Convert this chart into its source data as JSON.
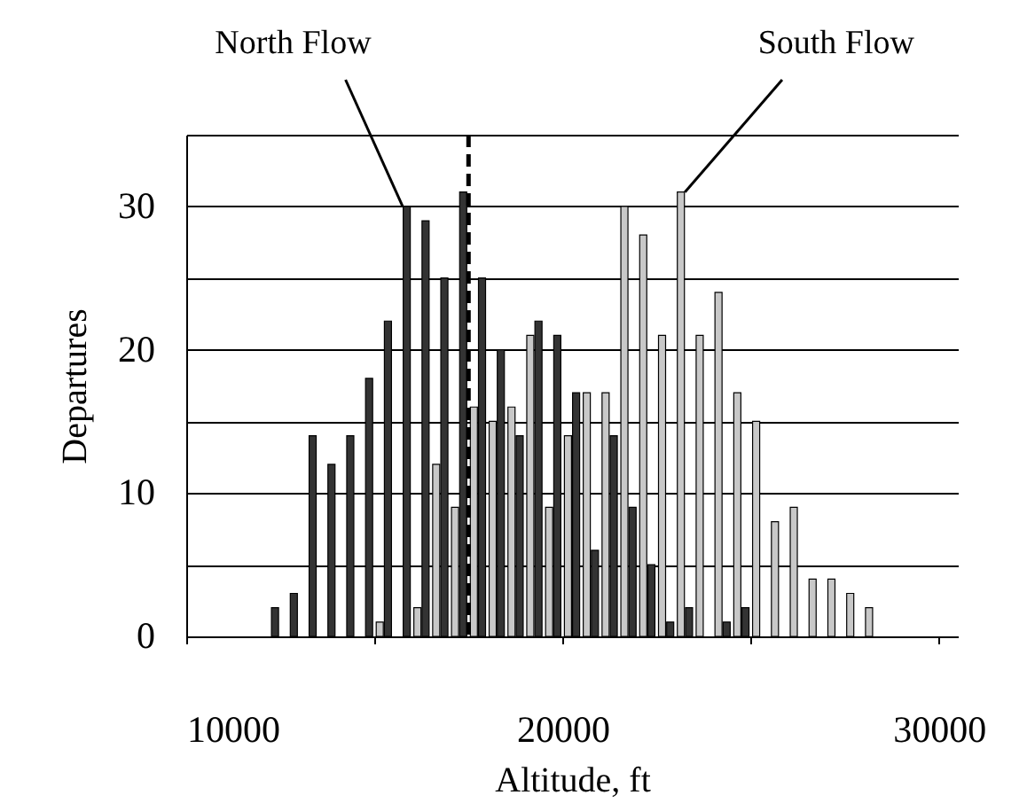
{
  "chart_data": {
    "type": "histogram",
    "xlabel": "Altitude, ft",
    "ylabel": "Departures",
    "bins": [
      12000,
      12500,
      13000,
      13500,
      14000,
      14500,
      15000,
      15500,
      16000,
      16500,
      17000,
      17500,
      18000,
      18500,
      19000,
      19500,
      20000,
      20500,
      21000,
      21500,
      22000,
      22500,
      23000,
      23500,
      24000,
      24500,
      25000,
      25500,
      26000,
      26500,
      27000,
      27500,
      28000,
      28500
    ],
    "series": [
      {
        "color": "#c8c8c8",
        "values": [
          0,
          0,
          0,
          0,
          0,
          0,
          1,
          0,
          2,
          12,
          9,
          16,
          15,
          16,
          21,
          9,
          14,
          17,
          17,
          30,
          28,
          21,
          31,
          21,
          24,
          17,
          15,
          8,
          9,
          4,
          4,
          3,
          2
        ]
      },
      {
        "color": "#333333",
        "values": [
          2,
          3,
          14,
          12,
          14,
          18,
          22,
          30,
          29,
          25,
          31,
          25,
          20,
          14,
          22,
          21,
          17,
          6,
          14,
          9,
          5,
          1,
          2,
          0,
          1,
          2,
          0,
          0,
          0,
          0,
          0,
          0,
          0
        ]
      }
    ],
    "xlim": [
      10000,
      30500
    ],
    "xticks": [
      10000,
      {
        "value": 15000,
        "label": null
      },
      20000,
      {
        "value": 25000,
        "label": null
      },
      30000
    ],
    "ylim": [
      0,
      35
    ],
    "yticks": [
      0,
      {
        "value": 5,
        "label": null
      },
      10,
      {
        "value": 15,
        "label": null
      },
      20,
      {
        "value": 25,
        "label": null
      },
      30,
      {
        "value": 35,
        "label": null
      }
    ],
    "grid": "y",
    "legend": false,
    "ref_lines": [
      {
        "axis": "x",
        "value": 17500,
        "line_style": "dashed",
        "color": "#000000"
      }
    ],
    "annotations": [
      {
        "text": "North Flow",
        "x": 15750,
        "y": 30
      },
      {
        "text": "South Flow",
        "x": 23250,
        "y": 31
      }
    ]
  }
}
